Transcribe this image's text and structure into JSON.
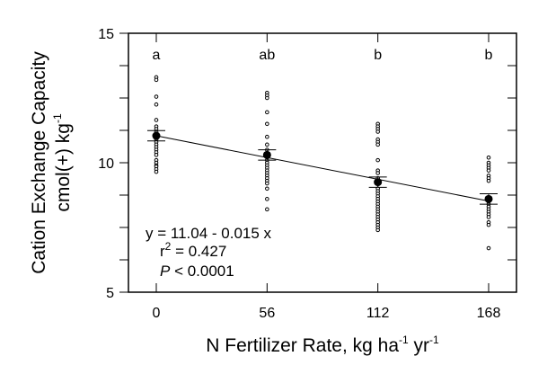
{
  "chart_data": {
    "type": "scatter",
    "title": "",
    "xlabel": "N Fertilizer Rate,  kg ha-1 yr-1",
    "xlabel_parts": {
      "main": "N Fertilizer Rate,  kg ha",
      "sup1": "-1",
      "mid": " yr",
      "sup2": "-1"
    },
    "ylabel": "Cation Exchange Capacity cmol(+) kg-1",
    "ylabel_parts": {
      "line1": "Cation Exchange Capacity",
      "line2_main": "cmol(+) kg",
      "line2_sup": "-1"
    },
    "x_ticks": [
      0,
      56,
      112,
      168
    ],
    "y_ticks": [
      5,
      10,
      15
    ],
    "ylim": [
      5,
      15
    ],
    "grid": false,
    "legend": null,
    "categories": [
      "0",
      "56",
      "112",
      "168"
    ],
    "means": [
      11.04,
      10.3,
      9.25,
      8.6
    ],
    "standard_errors": [
      0.2,
      0.2,
      0.2,
      0.2
    ],
    "significance_letters": [
      "a",
      "ab",
      "b",
      "b"
    ],
    "observations": [
      {
        "x": 0,
        "values": [
          13.3,
          13.2,
          12.55,
          12.25,
          11.65,
          11.4,
          11.3,
          11.2,
          11.1,
          10.9,
          10.8,
          10.7,
          10.6,
          10.5,
          10.4,
          10.3,
          10.1,
          10.0,
          9.9,
          9.85,
          9.75,
          9.65
        ]
      },
      {
        "x": 56,
        "values": [
          12.7,
          12.6,
          12.5,
          11.95,
          11.5,
          11.0,
          10.7,
          10.5,
          10.2,
          10.1,
          10.0,
          9.9,
          9.8,
          9.7,
          9.6,
          9.5,
          9.4,
          9.3,
          9.2,
          9.0,
          8.6,
          8.2
        ]
      },
      {
        "x": 112,
        "values": [
          11.5,
          11.4,
          11.3,
          11.2,
          10.9,
          10.8,
          10.7,
          10.1,
          9.7,
          9.6,
          9.4,
          9.0,
          8.9,
          8.8,
          8.7,
          8.6,
          8.5,
          8.4,
          8.3,
          8.2,
          8.1,
          8.0,
          7.9,
          7.8,
          7.7,
          7.6,
          7.5,
          7.4
        ]
      },
      {
        "x": 168,
        "values": [
          10.2,
          10.0,
          9.9,
          9.8,
          9.7,
          9.5,
          9.4,
          9.3,
          8.5,
          8.4,
          8.3,
          8.2,
          8.1,
          8.0,
          7.9,
          7.7,
          7.6,
          6.7
        ]
      }
    ],
    "regression": {
      "equation": "y = 11.04 - 0.015 x",
      "intercept": 11.04,
      "slope": -0.015,
      "r2_label": "r",
      "r2_sup": "2",
      "r2_value": " = 0.427",
      "p_label": "P",
      "p_value": " < 0.0001"
    }
  }
}
